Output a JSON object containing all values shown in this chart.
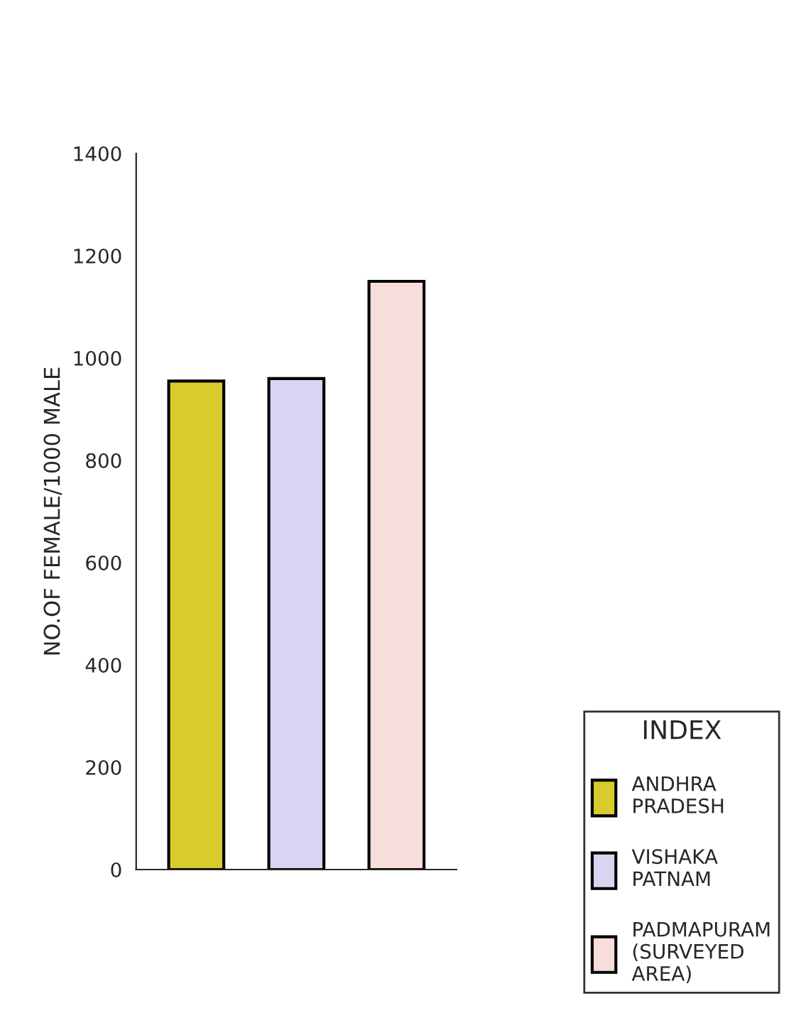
{
  "chart_data": {
    "type": "bar",
    "ylabel": "NO.OF FEMALE/1000 MALE",
    "legend_title": "INDEX",
    "categories": [
      null,
      null,
      null
    ],
    "series": [
      {
        "name": "ANDHRA\nPRADESH",
        "color": "#d8cc2c",
        "values": [
          955,
          null,
          null
        ]
      },
      {
        "name": "VISHAKA\nPATNAM",
        "color": "#d9d4f2",
        "values": [
          null,
          960,
          null
        ]
      },
      {
        "name": "PADMAPURAM\n(SURVEYED\nAREA)",
        "color": "#f7dedb",
        "values": [
          null,
          null,
          1150
        ]
      }
    ],
    "ylim": [
      0,
      1400
    ],
    "yticks": [
      0,
      200,
      400,
      600,
      800,
      1000,
      1200,
      1400
    ],
    "grid": false,
    "legend": "bottom right"
  }
}
